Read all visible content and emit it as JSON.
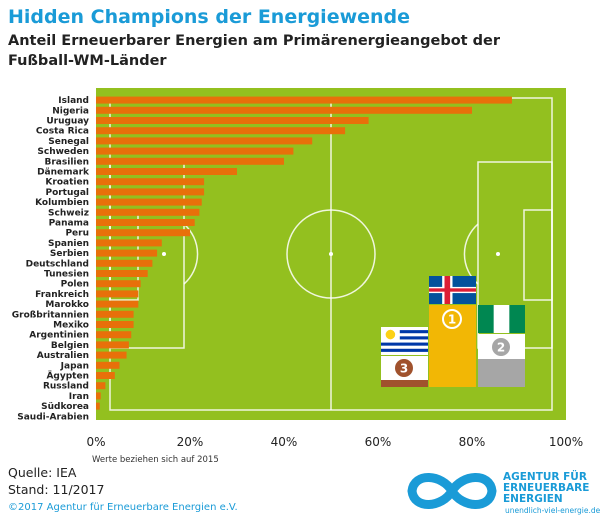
{
  "header": {
    "title": "Hidden Champions der Energiewende",
    "subtitle": "Anteil Erneuerbarer Energien am Primärenergieangebot der Fußball-WM-Länder"
  },
  "note": "Werte beziehen sich auf 2015",
  "footer": {
    "source": "Quelle: IEA",
    "date": "Stand: 11/2017",
    "copyright": "©2017 Agentur für Erneuerbare Energien e.V."
  },
  "logo": {
    "line1": "AGENTUR FÜR",
    "line2": "ERNEUERBARE",
    "line3": "ENERGIEN",
    "url": "unendlich-viel-energie.de"
  },
  "podium": {
    "first": "1",
    "second": "2",
    "third": "3"
  },
  "colors": {
    "title": "#1a9bd7",
    "bar": "#e8700a",
    "pitch": "#93c01f",
    "gold": "#f2b705",
    "silver": "#a6a6a6",
    "bronze": "#a0522d"
  },
  "chart_data": {
    "type": "bar",
    "orientation": "horizontal",
    "categories": [
      "Island",
      "Nigeria",
      "Uruguay",
      "Costa Rica",
      "Senegal",
      "Schweden",
      "Brasilien",
      "Dänemark",
      "Kroatien",
      "Portugal",
      "Kolumbien",
      "Schweiz",
      "Panama",
      "Peru",
      "Spanien",
      "Serbien",
      "Deutschland",
      "Tunesien",
      "Polen",
      "Frankreich",
      "Marokko",
      "Großbritannien",
      "Mexiko",
      "Argentinien",
      "Belgien",
      "Australien",
      "Japan",
      "Ägypten",
      "Russland",
      "Iran",
      "Südkorea",
      "Saudi-Arabien"
    ],
    "values": [
      88.5,
      80,
      58,
      53,
      46,
      42,
      40,
      30,
      23,
      23,
      22.5,
      22,
      21,
      20,
      14,
      13,
      12,
      11,
      9.5,
      9,
      9,
      8,
      8,
      7.5,
      7,
      6.5,
      5,
      4,
      2,
      1,
      0.8,
      0
    ],
    "xticks": [
      "0%",
      "20%",
      "40%",
      "60%",
      "80%",
      "100%"
    ],
    "xlim": [
      0,
      100
    ]
  }
}
